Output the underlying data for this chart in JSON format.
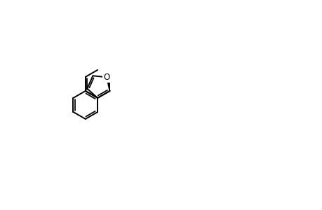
{
  "bg_color": "#ffffff",
  "line_color": "#000000",
  "gray_color": "#808080",
  "figsize": [
    4.6,
    3.0
  ],
  "dpi": 100,
  "lw": 1.4,
  "lw_double_inner": 1.2
}
